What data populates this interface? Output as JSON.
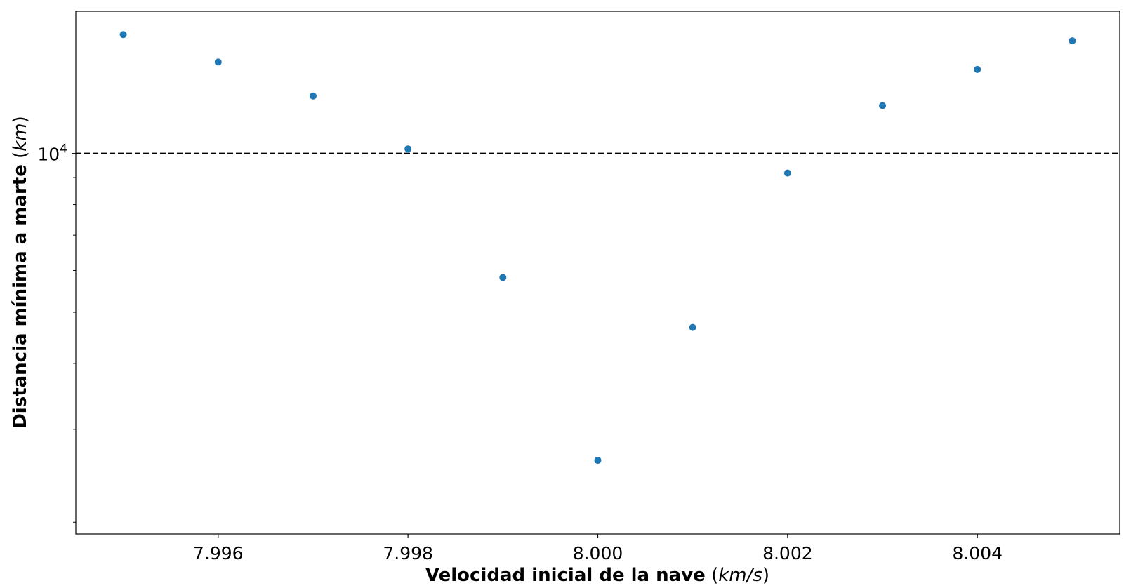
{
  "chart_data": {
    "type": "scatter",
    "title": "",
    "xlabel": {
      "bold": "Velocidad inicial de la nave",
      "unit_open": "(",
      "unit": "km/s",
      "unit_close": ")"
    },
    "ylabel": {
      "bold": "Distancia mínima a marte",
      "unit_open": "(",
      "unit": "km",
      "unit_close": ")"
    },
    "x_ticks": [
      "7.996",
      "7.998",
      "8.000",
      "8.002",
      "8.004"
    ],
    "y_tick_major": {
      "base": "10",
      "exponent": "4"
    },
    "xlim": [
      7.9945,
      8.0055
    ],
    "ylim": [
      1900,
      18600
    ],
    "yscale": "log",
    "grid": false,
    "reference_line": {
      "y": 10000,
      "style": "dashed",
      "color": "#000000"
    },
    "series": [
      {
        "color": "#1f77b4",
        "x": [
          7.995,
          7.996,
          7.997,
          7.998,
          7.999,
          8.0,
          8.001,
          8.002,
          8.003,
          8.004,
          8.005
        ],
        "y": [
          16800,
          14900,
          12850,
          10200,
          5820,
          2620,
          4680,
          9180,
          12320,
          14430,
          16350
        ]
      }
    ]
  }
}
